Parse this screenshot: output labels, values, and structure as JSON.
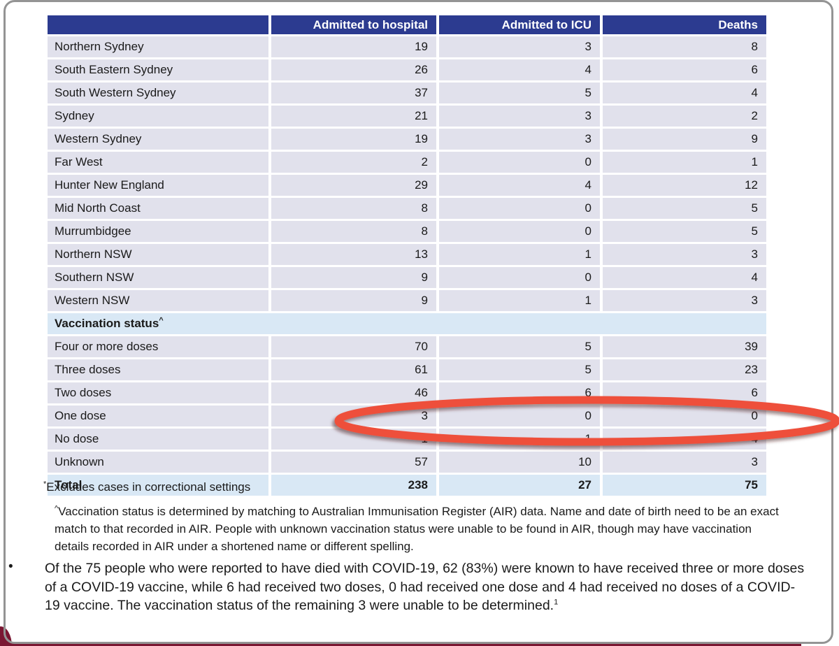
{
  "page": {
    "colors": {
      "header_blue": "#2c3b90",
      "row_bg": "#e1e1ec",
      "highlight_bg": "#d9e8f5",
      "maroon": "#7a1632",
      "ellipse_red": "#ee4f3b",
      "border_gray": "#949494"
    }
  },
  "table": {
    "columns": [
      "",
      "Admitted to hospital",
      "Admitted to ICU",
      "Deaths"
    ],
    "region_rows": [
      {
        "label": "Northern Sydney",
        "values": [
          19,
          3,
          8
        ]
      },
      {
        "label": "South Eastern Sydney",
        "values": [
          26,
          4,
          6
        ]
      },
      {
        "label": "South Western Sydney",
        "values": [
          37,
          5,
          4
        ]
      },
      {
        "label": "Sydney",
        "values": [
          21,
          3,
          2
        ]
      },
      {
        "label": "Western Sydney",
        "values": [
          19,
          3,
          9
        ]
      },
      {
        "label": "Far West",
        "values": [
          2,
          0,
          1
        ]
      },
      {
        "label": "Hunter New England",
        "values": [
          29,
          4,
          12
        ]
      },
      {
        "label": "Mid North Coast",
        "values": [
          8,
          0,
          5
        ]
      },
      {
        "label": "Murrumbidgee",
        "values": [
          8,
          0,
          5
        ]
      },
      {
        "label": "Northern NSW",
        "values": [
          13,
          1,
          3
        ]
      },
      {
        "label": "Southern NSW",
        "values": [
          9,
          0,
          4
        ]
      },
      {
        "label": "Western NSW",
        "values": [
          9,
          1,
          3
        ]
      }
    ],
    "section_label": "Vaccination status",
    "section_superscript": "^",
    "vaccination_rows": [
      {
        "label": "Four or more doses",
        "values": [
          70,
          5,
          39
        ]
      },
      {
        "label": "Three doses",
        "values": [
          61,
          5,
          23
        ]
      },
      {
        "label": "Two doses",
        "values": [
          46,
          6,
          6
        ]
      },
      {
        "label": "One dose",
        "values": [
          3,
          0,
          0
        ]
      },
      {
        "label": "No dose",
        "values": [
          1,
          1,
          4
        ]
      },
      {
        "label": "Unknown",
        "values": [
          57,
          10,
          3
        ]
      }
    ],
    "total_row": {
      "label": "Total",
      "values": [
        238,
        27,
        75
      ]
    }
  },
  "footnotes": {
    "footnote1_marker": "*",
    "footnote1_text": "Excludes cases in correctional settings",
    "footnote2_marker": "^",
    "footnote2_text": "Vaccination status is determined by matching to Australian Immunisation Register (AIR) data. Name and date of birth need to be an exact match to that recorded in AIR. People with unknown vaccination status were unable to be found in AIR, though may have vaccination details recorded in AIR under a shortened name or different spelling."
  },
  "bullet": {
    "marker": "•",
    "text": "Of the 75 people who were reported to have died with COVID-19, 62 (83%) were known to have received three or more doses of a COVID-19 vaccine, while 6 had received two doses, 0 had received one dose and 4 had received no doses of a COVID-19 vaccine. The vaccination status of the remaining 3 were unable to be determined.",
    "superscript": "1"
  },
  "annotation": {
    "shape": "ellipse",
    "circled_row": "No dose"
  }
}
